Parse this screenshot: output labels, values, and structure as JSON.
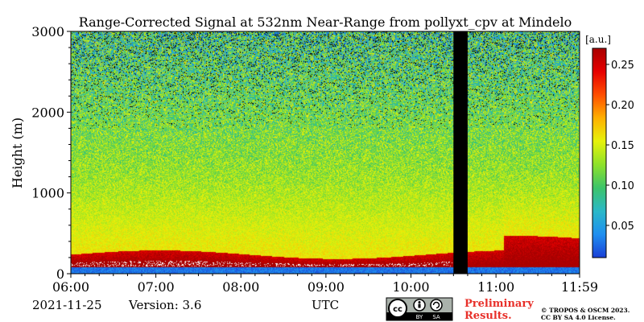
{
  "chart_data": {
    "type": "heatmap",
    "title": "Range-Corrected Signal at 532nm Near-Range from pollyxt_cpv at Mindelo",
    "ylabel": "Height (m)",
    "xlabel": "UTC",
    "x_range": [
      "06:00",
      "11:59"
    ],
    "x_ticks": [
      "06:00",
      "07:00",
      "08:00",
      "09:00",
      "10:00",
      "11:00",
      "11:59"
    ],
    "y_range": [
      0,
      3000
    ],
    "y_ticks": [
      "0",
      "1000",
      "2000",
      "3000"
    ],
    "colorbar": {
      "unit": "[a.u.]",
      "range": [
        0.01,
        0.27
      ],
      "ticks": [
        "0.05",
        "0.10",
        "0.15",
        "0.20",
        "0.25"
      ],
      "colormap": [
        "#1a3fd6",
        "#1f8ff0",
        "#2ab8c8",
        "#3cc46a",
        "#8ee22a",
        "#e6f20a",
        "#ffb000",
        "#ff4e00",
        "#e60000",
        "#a80000"
      ]
    },
    "no_data_gap": [
      "10:30",
      "10:40"
    ],
    "layers": [
      {
        "feature": "near-surface layer",
        "top_m": 300,
        "value": 0.25
      },
      {
        "feature": "lower troposphere",
        "top_m": 1200,
        "value": 0.13
      },
      {
        "feature": "upper region",
        "top_m": 3000,
        "value": 0.09
      }
    ]
  },
  "footer": {
    "date": "2021-11-25",
    "version": "Version: 3.6",
    "preliminary_line1": "Preliminary",
    "preliminary_line2": "Results.",
    "copyright_line1": "© TROPOS & OSCM 2023.",
    "copyright_line2": "CC BY SA 4.0 License."
  },
  "license_badge": {
    "cc": "cc",
    "by": "BY",
    "sa": "SA"
  },
  "colors": {
    "preliminary": "#e8302a",
    "gap": "#000000"
  }
}
